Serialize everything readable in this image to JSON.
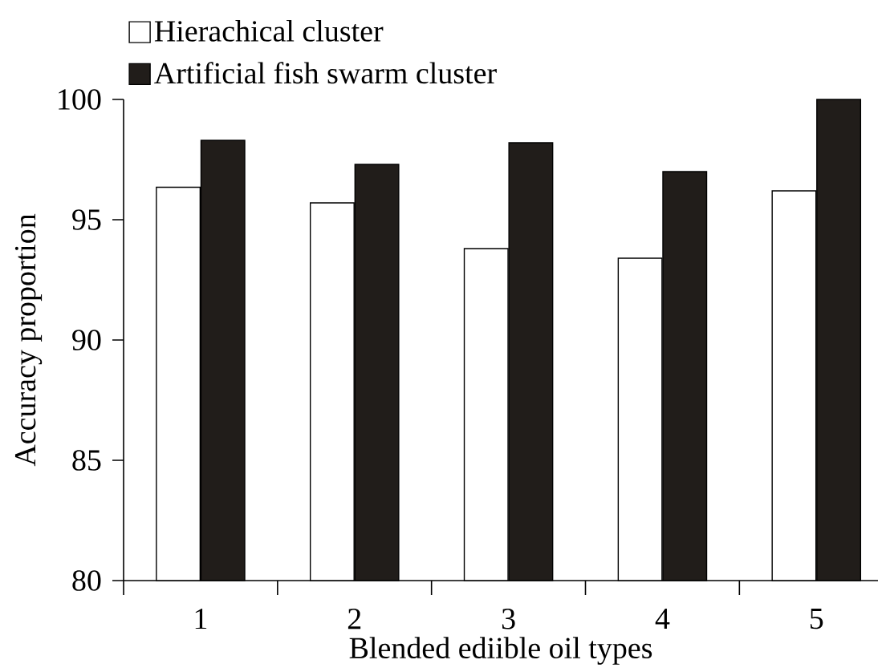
{
  "chart_data": {
    "type": "bar",
    "xlabel": "Blended ediible oil types",
    "ylabel": "Accuracy proportion",
    "categories": [
      "1",
      "2",
      "3",
      "4",
      "5"
    ],
    "series": [
      {
        "name": "Hierachical cluster",
        "color": "#ffffff",
        "values": [
          96.35,
          95.7,
          93.8,
          93.4,
          96.2
        ]
      },
      {
        "name": "Artificial fish swarm cluster",
        "color": "#211d1a",
        "values": [
          98.3,
          97.3,
          98.2,
          97.0,
          100
        ]
      }
    ],
    "ylim": [
      80,
      100
    ],
    "yticks": [
      80,
      85,
      90,
      95,
      100
    ],
    "legend": "top left",
    "grid": false
  }
}
